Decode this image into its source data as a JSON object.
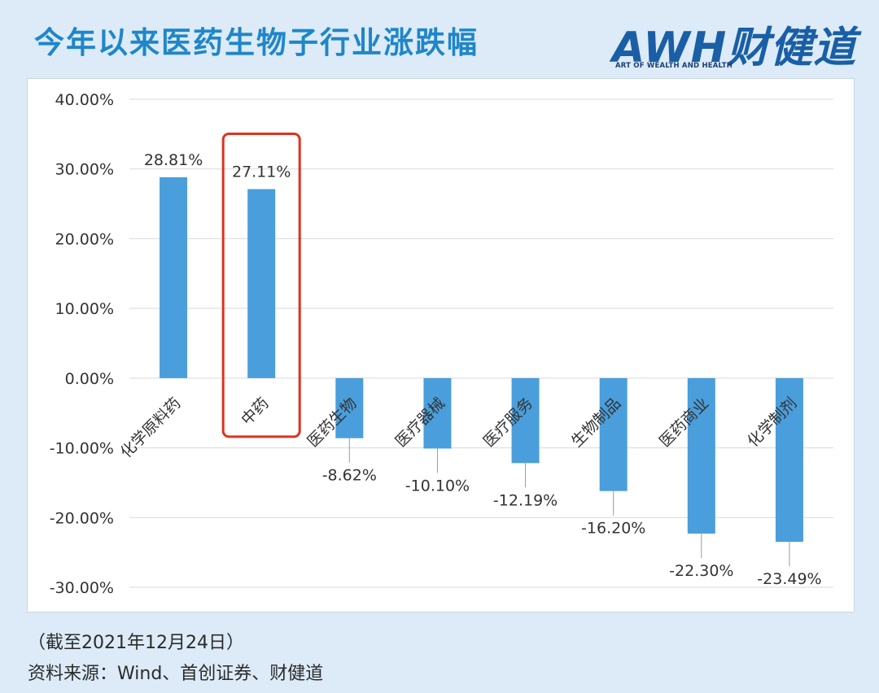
{
  "header": {
    "title": "今年以来医药生物子行业涨跌幅",
    "logo_text": "AWH财健道",
    "logo_subtitle": "ART OF WEALTH AND HEALTH"
  },
  "footer": {
    "date_note": "（截至2021年12月24日）",
    "source": "资料来源：Wind、首创证券、财健道"
  },
  "colors": {
    "bar": "#4a9edb",
    "highlight_box": "#e0321f",
    "title": "#1f86c9",
    "background": "#dcebf7"
  },
  "chart_data": {
    "type": "bar",
    "categories": [
      "化学原料药",
      "中药",
      "医药生物",
      "医疗器械",
      "医疗服务",
      "生物制品",
      "医药商业",
      "化学制剂"
    ],
    "values": [
      28.81,
      27.11,
      -8.62,
      -10.1,
      -12.19,
      -16.2,
      -22.3,
      -23.49
    ],
    "data_labels": [
      "28.81%",
      "27.11%",
      "-8.62%",
      "-10.10%",
      "-12.19%",
      "-16.20%",
      "-22.30%",
      "-23.49%"
    ],
    "ylim": [
      -30,
      40
    ],
    "yticks": [
      40,
      30,
      20,
      10,
      0,
      -10,
      -20,
      -30
    ],
    "ytick_labels": [
      "40.00%",
      "30.00%",
      "20.00%",
      "10.00%",
      "0.00%",
      "-10.00%",
      "-20.00%",
      "-30.00%"
    ],
    "grid": true,
    "highlighted_category": "中药",
    "title": "",
    "xlabel": "",
    "ylabel": ""
  }
}
